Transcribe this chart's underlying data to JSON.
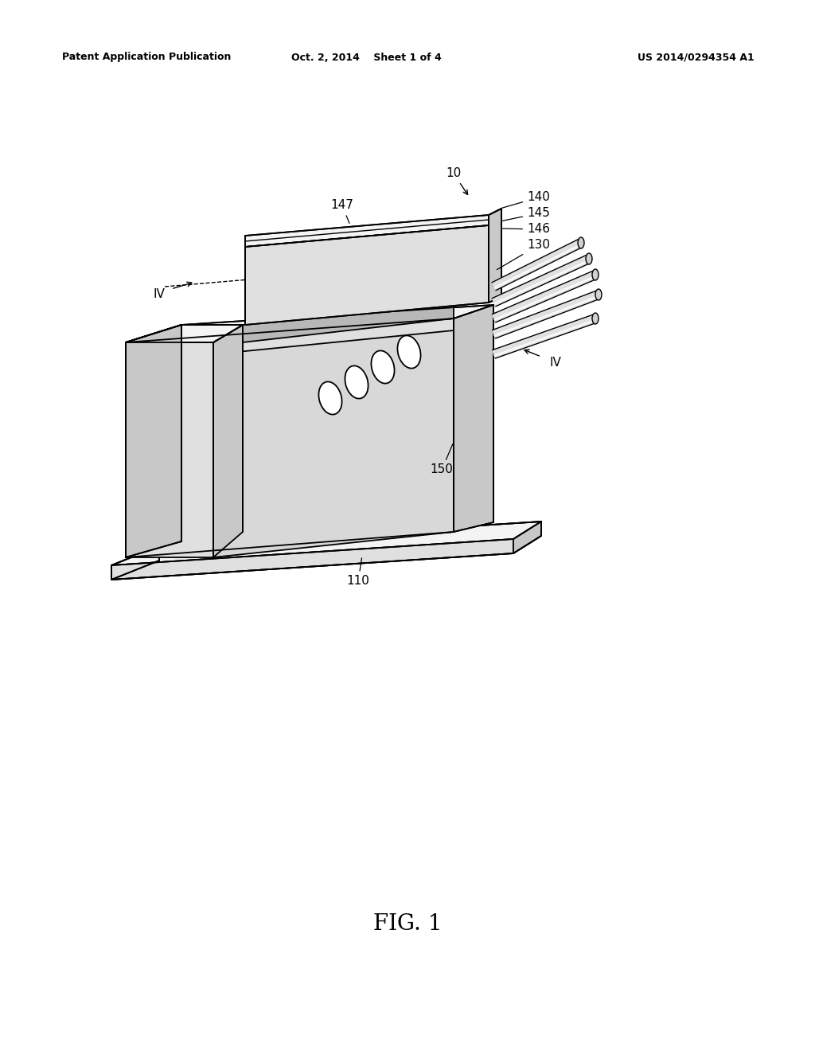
{
  "background_color": "#ffffff",
  "line_color": "#000000",
  "line_width": 1.3,
  "header_left": "Patent Application Publication",
  "header_center": "Oct. 2, 2014    Sheet 1 of 4",
  "header_right": "US 2014/0294354 A1",
  "fig_label": "FIG. 1",
  "gray_light": "#f4f4f4",
  "gray_mid": "#e0e0e0",
  "gray_dark": "#c8c8c8",
  "gray_very_dark": "#b0b0b0",
  "white": "#ffffff"
}
